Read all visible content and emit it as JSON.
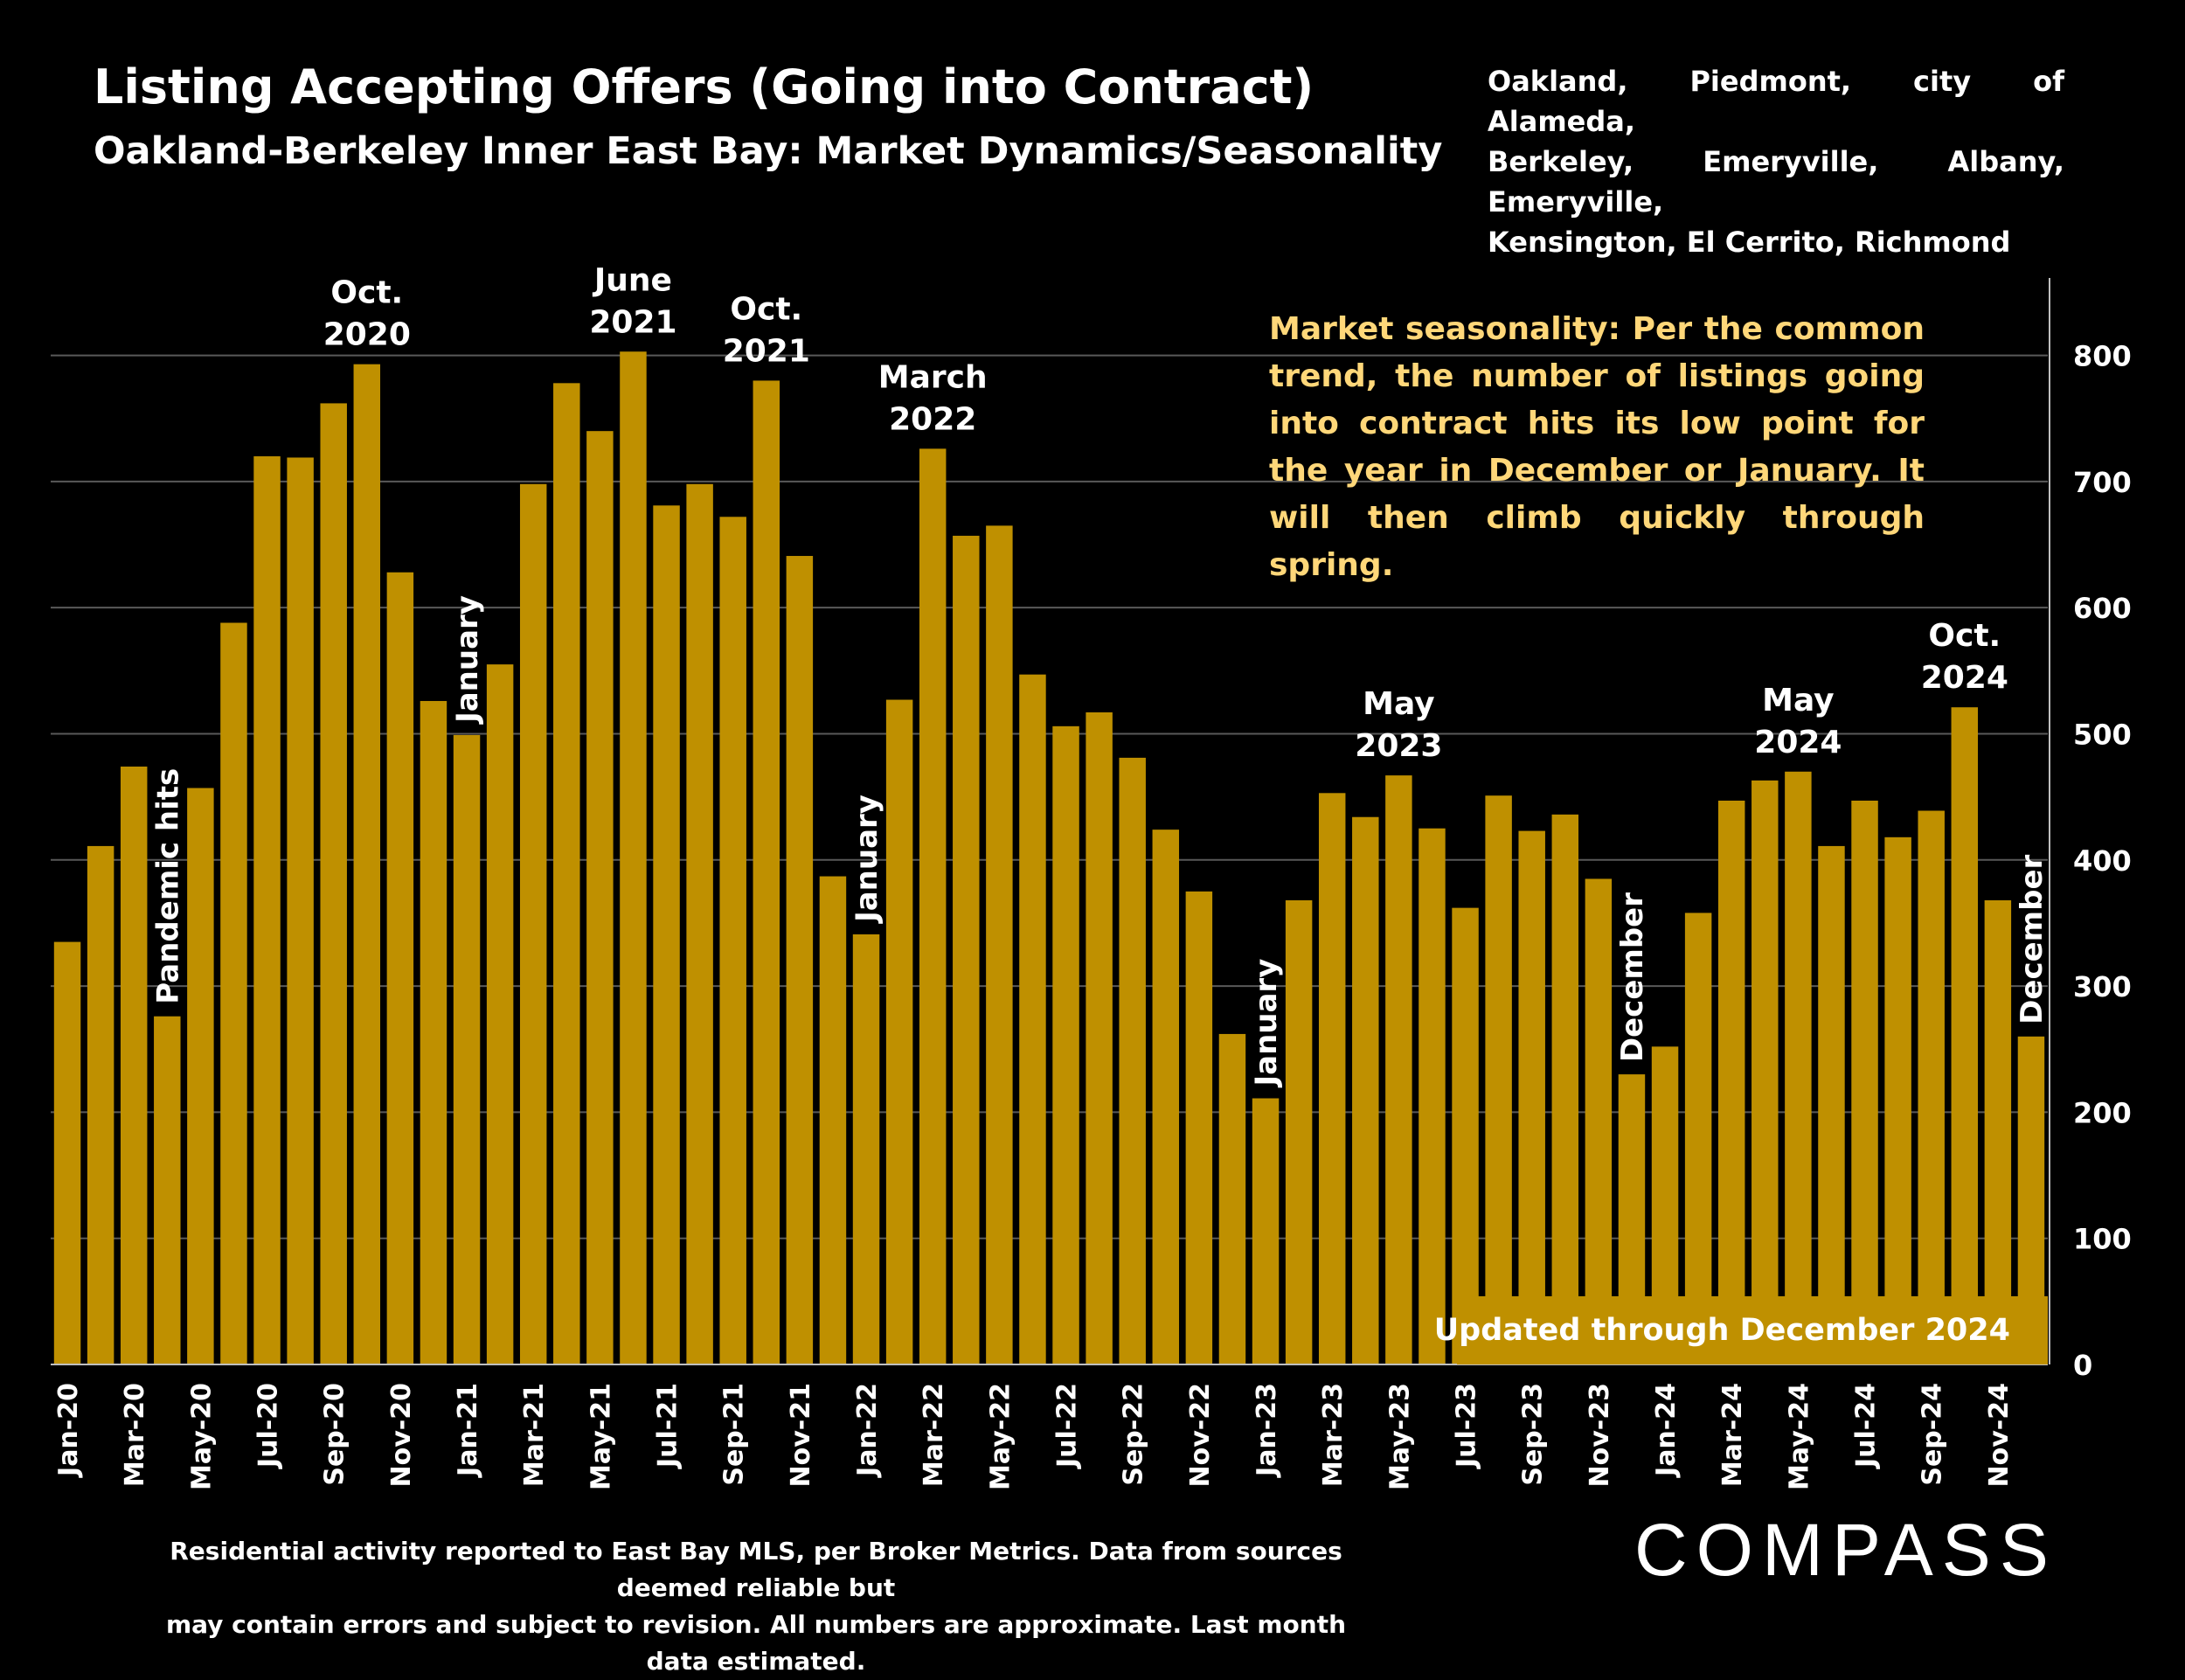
{
  "header": {
    "title": "Listing Accepting Offers (Going into Contract)",
    "subtitle": "Oakland-Berkeley Inner East Bay: Market Dynamics/Seasonality",
    "region_lines": [
      "Oakland, Piedmont, city of Alameda,",
      "Berkeley, Emeryville, Albany, Emeryville,",
      "Kensington, El Cerrito, Richmond"
    ]
  },
  "note": "Market seasonality:  Per the common trend, the number of listings going into contract hits its low point for the year in December or January. It will then climb quickly through spring.",
  "updated_label": "Updated through December 2024",
  "footer_lines": [
    "Residential activity reported to East Bay MLS, per Broker Metrics. Data from sources deemed reliable but",
    "may contain errors and subject to revision. All numbers are approximate. Last month data estimated."
  ],
  "logo": "COMPASS",
  "colors": {
    "bar": "#bf9000",
    "note": "#ffd779",
    "background": "#000000",
    "grid": "#595959"
  },
  "chart_data": {
    "type": "bar",
    "categories": [
      "Jan-20",
      "Feb-20",
      "Mar-20",
      "Apr-20",
      "May-20",
      "Jun-20",
      "Jul-20",
      "Aug-20",
      "Sep-20",
      "Oct-20",
      "Nov-20",
      "Dec-20",
      "Jan-21",
      "Feb-21",
      "Mar-21",
      "Apr-21",
      "May-21",
      "Jun-21",
      "Jul-21",
      "Aug-21",
      "Sep-21",
      "Oct-21",
      "Nov-21",
      "Dec-21",
      "Jan-22",
      "Feb-22",
      "Mar-22",
      "Apr-22",
      "May-22",
      "Jun-22",
      "Jul-22",
      "Aug-22",
      "Sep-22",
      "Oct-22",
      "Nov-22",
      "Dec-22",
      "Jan-23",
      "Feb-23",
      "Mar-23",
      "Apr-23",
      "May-23",
      "Jun-23",
      "Jul-23",
      "Aug-23",
      "Sep-23",
      "Oct-23",
      "Nov-23",
      "Dec-23",
      "Jan-24",
      "Feb-24",
      "Mar-24",
      "Apr-24",
      "May-24",
      "Jun-24",
      "Jul-24",
      "Aug-24",
      "Sep-24",
      "Oct-24",
      "Nov-24",
      "Dec-24"
    ],
    "x_tick_labels": [
      "Jan-20",
      "Mar-20",
      "May-20",
      "Jul-20",
      "Sep-20",
      "Nov-20",
      "Jan-21",
      "Mar-21",
      "May-21",
      "Jul-21",
      "Sep-21",
      "Nov-21",
      "Jan-22",
      "Mar-22",
      "May-22",
      "Jul-22",
      "Sep-22",
      "Nov-22",
      "Jan-23",
      "Mar-23",
      "May-23",
      "Jul-23",
      "Sep-23",
      "Nov-23",
      "Jan-24",
      "Mar-24",
      "May-24",
      "Jul-24",
      "Sep-24",
      "Nov-24"
    ],
    "values": [
      335,
      411,
      474,
      276,
      457,
      588,
      720,
      719,
      762,
      793,
      628,
      526,
      499,
      555,
      698,
      778,
      740,
      803,
      681,
      698,
      672,
      780,
      641,
      387,
      341,
      527,
      726,
      657,
      665,
      547,
      506,
      517,
      481,
      424,
      375,
      262,
      211,
      368,
      453,
      434,
      467,
      425,
      362,
      451,
      423,
      436,
      385,
      230,
      252,
      358,
      447,
      463,
      470,
      411,
      447,
      418,
      439,
      521,
      368,
      260
    ],
    "ylim": [
      0,
      860
    ],
    "yticks": [
      0,
      100,
      200,
      300,
      400,
      500,
      600,
      700,
      800
    ],
    "y_axis_side": "right",
    "grid": true,
    "annotations": [
      {
        "index": 3,
        "text": "Pandemic hits",
        "style": "rotated"
      },
      {
        "index": 9,
        "text": [
          "Oct.",
          "2020"
        ],
        "style": "above"
      },
      {
        "index": 12,
        "text": "January",
        "style": "rotated"
      },
      {
        "index": 17,
        "text": [
          "June",
          "2021"
        ],
        "style": "above"
      },
      {
        "index": 21,
        "text": [
          "Oct.",
          "2021"
        ],
        "style": "above"
      },
      {
        "index": 24,
        "text": "January",
        "style": "rotated"
      },
      {
        "index": 26,
        "text": [
          "March",
          "2022"
        ],
        "style": "above"
      },
      {
        "index": 36,
        "text": "January",
        "style": "rotated"
      },
      {
        "index": 40,
        "text": [
          "May",
          "2023"
        ],
        "style": "above"
      },
      {
        "index": 47,
        "text": "December",
        "style": "rotated"
      },
      {
        "index": 52,
        "text": [
          "May",
          "2024"
        ],
        "style": "above"
      },
      {
        "index": 57,
        "text": [
          "Oct.",
          "2024"
        ],
        "style": "above"
      },
      {
        "index": 59,
        "text": "December",
        "style": "rotated"
      }
    ]
  }
}
